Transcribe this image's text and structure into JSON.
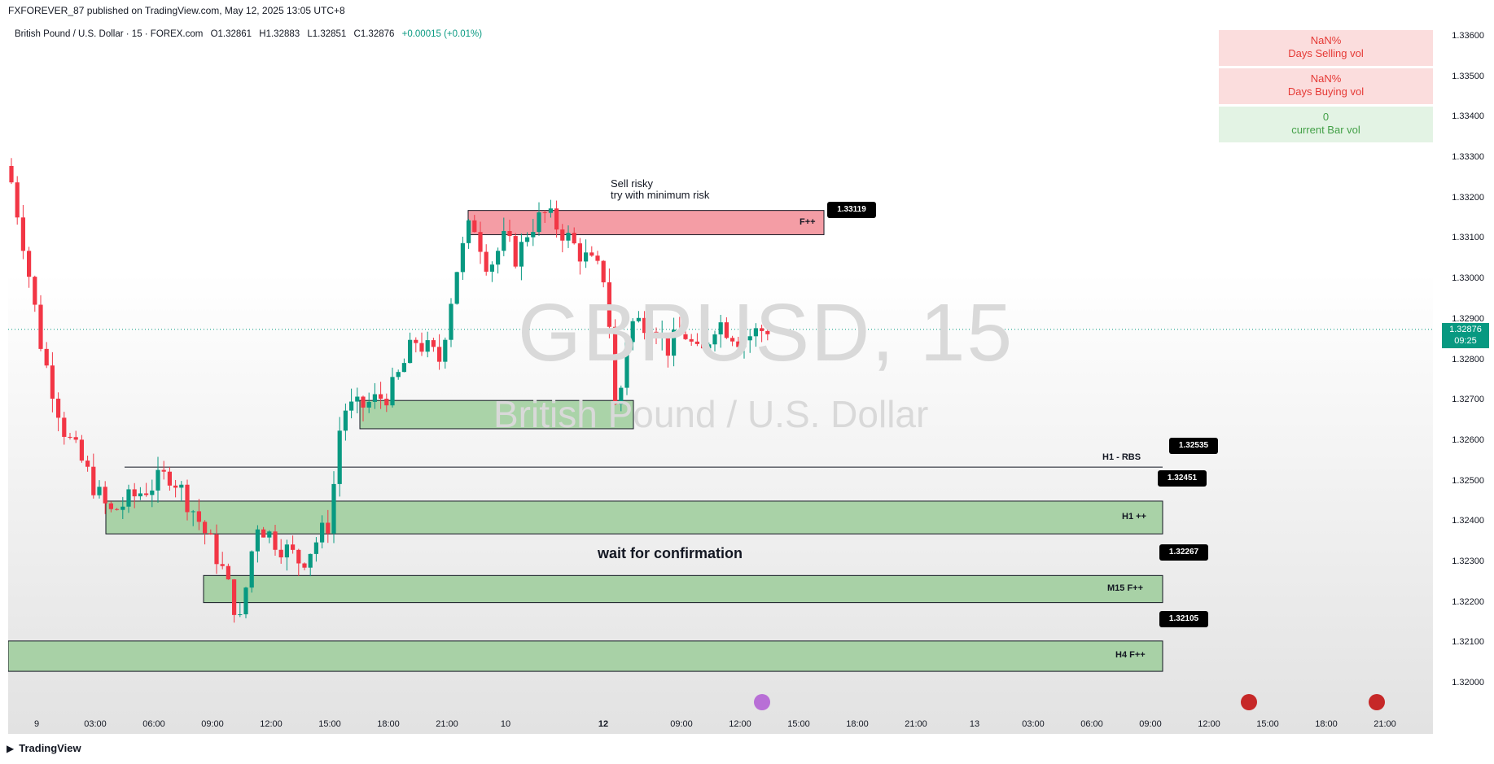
{
  "header": {
    "published": "FXFOREVER_87 published on TradingView.com, May 12, 2025 13:05 UTC+8",
    "symbol_desc": "British Pound / U.S. Dollar · 15 · FOREX.com",
    "ohlc": {
      "o": "O1.32861",
      "h": "H1.32883",
      "l": "L1.32851",
      "c": "C1.32876",
      "chg": "+0.00015 (+0.01%)"
    }
  },
  "watermark": {
    "symbol": "GBPUSD, 15",
    "desc": "British Pound / U.S. Dollar"
  },
  "volume_panel": {
    "sell_value": "NaN%",
    "sell_label": "Days Selling vol",
    "buy_value": "NaN%",
    "buy_label": "Days Buying vol",
    "cur_value": "0",
    "cur_label": "current Bar vol"
  },
  "annotations": {
    "sell_line1": "Sell risky",
    "sell_line2": "try with minimum risk",
    "wait": "wait for confirmation"
  },
  "last_price": {
    "value": "1.32876",
    "countdown": "09:25"
  },
  "colors": {
    "up": "#089981",
    "down": "#f23645",
    "demand_zone": "#9ccc9a",
    "supply_zone": "#f28c95"
  },
  "footer": {
    "brand": "TradingView"
  },
  "chart_data": {
    "type": "candlestick",
    "symbol": "GBPUSD",
    "timeframe": "15",
    "ylim": [
      1.3195,
      1.3365
    ],
    "y_ticks": [
      "1.33600",
      "1.33500",
      "1.33400",
      "1.33300",
      "1.33200",
      "1.33100",
      "1.33000",
      "1.32900",
      "1.32800",
      "1.32700",
      "1.32600",
      "1.32500",
      "1.32400",
      "1.32300",
      "1.32200",
      "1.32100",
      "1.32000"
    ],
    "x_ticks": [
      "9",
      "03:00",
      "06:00",
      "09:00",
      "12:00",
      "15:00",
      "18:00",
      "21:00",
      "10",
      "12",
      "09:00",
      "12:00",
      "15:00",
      "18:00",
      "21:00",
      "13",
      "03:00",
      "06:00",
      "09:00",
      "12:00",
      "15:00",
      "18:00",
      "21:00"
    ],
    "zones": [
      {
        "label": "F++",
        "type": "supply",
        "low": 1.3311,
        "high": 1.3317,
        "tag": "1.33119"
      },
      {
        "label": "",
        "type": "demand",
        "low": 1.3263,
        "high": 1.327
      },
      {
        "label": "H1 - RBS",
        "type": "line",
        "level": 1.32535,
        "tag": "1.32535"
      },
      {
        "label": "H1 ++",
        "type": "demand",
        "low": 1.3237,
        "high": 1.32451,
        "tag": "1.32451"
      },
      {
        "label": "M15 F++",
        "type": "demand",
        "low": 1.322,
        "high": 1.32267,
        "tag": "1.32267"
      },
      {
        "label": "H4 F++",
        "type": "demand",
        "low": 1.3203,
        "high": 1.32105,
        "tag": "1.32105"
      }
    ],
    "last_price": 1.32876
  }
}
